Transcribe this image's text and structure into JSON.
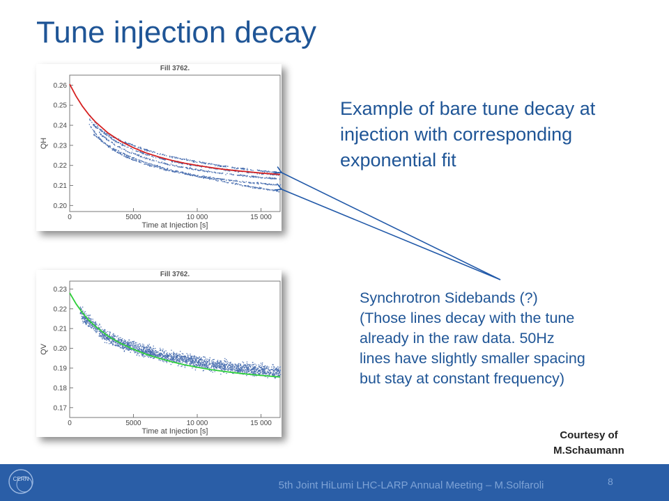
{
  "slide": {
    "title": "Tune injection decay",
    "description": "Example of bare tune decay at injection with corresponding exponential fit",
    "note_lines": [
      "Synchrotron Sidebands (?)",
      "(Those lines decay with the tune",
      "already in the raw data. 50Hz",
      "lines have slightly smaller spacing",
      "but stay at constant frequency)"
    ],
    "courtesy_lines": [
      "Courtesy of",
      "M.Schaumann"
    ],
    "footer": "5th Joint HiLumi LHC-LARP Annual Meeting – M.Solfaroli",
    "page_number": "8",
    "logo_text": "CERN",
    "colors": {
      "title": "#1f5596",
      "footer_bg": "#2a5ea7",
      "data": "#4a6fb0",
      "fit_h": "#d62020",
      "fit_v": "#2ecf3a",
      "arrow": "#2058a8"
    }
  },
  "chart_data": [
    {
      "type": "scatter",
      "title": "Fill 3762.",
      "xlabel": "Time at Injection [s]",
      "ylabel": "QH",
      "xlim": [
        0,
        16500
      ],
      "ylim": [
        0.197,
        0.265
      ],
      "xticks": [
        0,
        5000,
        10000,
        15000
      ],
      "xtick_labels": [
        "0",
        "5000",
        "10 000",
        "15 000"
      ],
      "yticks": [
        0.2,
        0.21,
        0.22,
        0.23,
        0.24,
        0.25,
        0.26
      ],
      "ytick_labels": [
        "0.20",
        "0.21",
        "0.22",
        "0.23",
        "0.24",
        "0.25",
        "0.26"
      ],
      "grid": false,
      "series": [
        {
          "x": [
            1800,
            3000,
            4000,
            5000,
            6000,
            7000,
            8000,
            9000,
            10000,
            11000,
            12000,
            13000,
            14000,
            15000,
            16500
          ],
          "y": [
            0.2405,
            0.2355,
            0.2325,
            0.23,
            0.2278,
            0.226,
            0.2244,
            0.2232,
            0.222,
            0.2208,
            0.2198,
            0.219,
            0.2182,
            0.2175,
            0.2165
          ]
        },
        {
          "x": [
            1500,
            2500,
            3500,
            4500,
            5500,
            6500,
            7500,
            8500,
            9500,
            10500,
            11500,
            12500,
            13500,
            14500,
            15500,
            16500
          ],
          "y": [
            0.2455,
            0.237,
            0.2325,
            0.2292,
            0.2267,
            0.2247,
            0.223,
            0.2217,
            0.2205,
            0.2195,
            0.2186,
            0.2178,
            0.2171,
            0.2165,
            0.2159,
            0.2154
          ]
        },
        {
          "x": [
            1500,
            2500,
            3500,
            4500,
            5500,
            6500,
            7500,
            8500,
            9500,
            10500,
            11500,
            12500,
            13500,
            14500,
            15500,
            16500
          ],
          "y": [
            0.2435,
            0.235,
            0.2305,
            0.2272,
            0.2247,
            0.2227,
            0.221,
            0.2197,
            0.2185,
            0.2175,
            0.2166,
            0.2158,
            0.2151,
            0.2145,
            0.2139,
            0.2134
          ]
        },
        {
          "x": [
            1500,
            2500,
            3500,
            4500,
            5500,
            6500,
            7500,
            8500,
            9500,
            10500,
            11500,
            12500,
            13500,
            14500,
            15500,
            16500
          ],
          "y": [
            0.2405,
            0.232,
            0.2275,
            0.2242,
            0.2217,
            0.2197,
            0.218,
            0.2167,
            0.2155,
            0.2145,
            0.2136,
            0.2128,
            0.2121,
            0.2115,
            0.2109,
            0.2104
          ]
        },
        {
          "x": [
            1800,
            3000,
            4000,
            5000,
            6000,
            7000,
            8000,
            9000,
            10000,
            11000,
            12000,
            13000,
            14000,
            15000,
            16500
          ],
          "y": [
            0.236,
            0.23,
            0.2265,
            0.2238,
            0.2215,
            0.2195,
            0.2178,
            0.2162,
            0.2148,
            0.2135,
            0.2122,
            0.211,
            0.2098,
            0.2087,
            0.2072
          ]
        }
      ],
      "fit": {
        "x": [
          0,
          500,
          1000,
          1500,
          2000,
          3000,
          4000,
          5000,
          6000,
          7000,
          8000,
          9000,
          10000,
          11000,
          12000,
          13000,
          14000,
          15000,
          16500
        ],
        "y": [
          0.2605,
          0.2545,
          0.2495,
          0.2453,
          0.2418,
          0.2362,
          0.232,
          0.2288,
          0.2262,
          0.2242,
          0.2225,
          0.2211,
          0.22,
          0.219,
          0.2181,
          0.2174,
          0.2168,
          0.2162,
          0.2155
        ]
      }
    },
    {
      "type": "scatter",
      "title": "Fill 3762.",
      "xlabel": "Time at Injection [s]",
      "ylabel": "QV",
      "xlim": [
        0,
        16500
      ],
      "ylim": [
        0.165,
        0.234
      ],
      "xticks": [
        0,
        5000,
        10000,
        15000
      ],
      "xtick_labels": [
        "0",
        "5000",
        "10 000",
        "15 000"
      ],
      "yticks": [
        0.17,
        0.18,
        0.19,
        0.2,
        0.21,
        0.22,
        0.23
      ],
      "ytick_labels": [
        "0.17",
        "0.18",
        "0.19",
        "0.20",
        "0.21",
        "0.22",
        "0.23"
      ],
      "grid": false,
      "series": [
        {
          "x": [
            800,
            1200,
            1600,
            1800,
            2500,
            3500,
            4500,
            5500,
            6500,
            7500,
            8500,
            9500,
            10500,
            11500,
            12500,
            13500,
            14500,
            15500,
            16500
          ],
          "y": [
            0.219,
            0.215,
            0.213,
            0.212,
            0.2075,
            0.204,
            0.2015,
            0.1995,
            0.1978,
            0.1963,
            0.195,
            0.1938,
            0.1927,
            0.1917,
            0.1908,
            0.19,
            0.1893,
            0.1886,
            0.188
          ]
        }
      ],
      "fit": {
        "x": [
          0,
          500,
          1000,
          1500,
          2000,
          3000,
          4000,
          5000,
          6000,
          7000,
          8000,
          9000,
          10000,
          11000,
          12000,
          13000,
          14000,
          15000,
          16500
        ],
        "y": [
          0.228,
          0.2225,
          0.218,
          0.2142,
          0.2112,
          0.2062,
          0.2025,
          0.1995,
          0.197,
          0.195,
          0.1932,
          0.1917,
          0.1904,
          0.1893,
          0.1884,
          0.1876,
          0.1869,
          0.1863,
          0.1855
        ]
      }
    }
  ]
}
